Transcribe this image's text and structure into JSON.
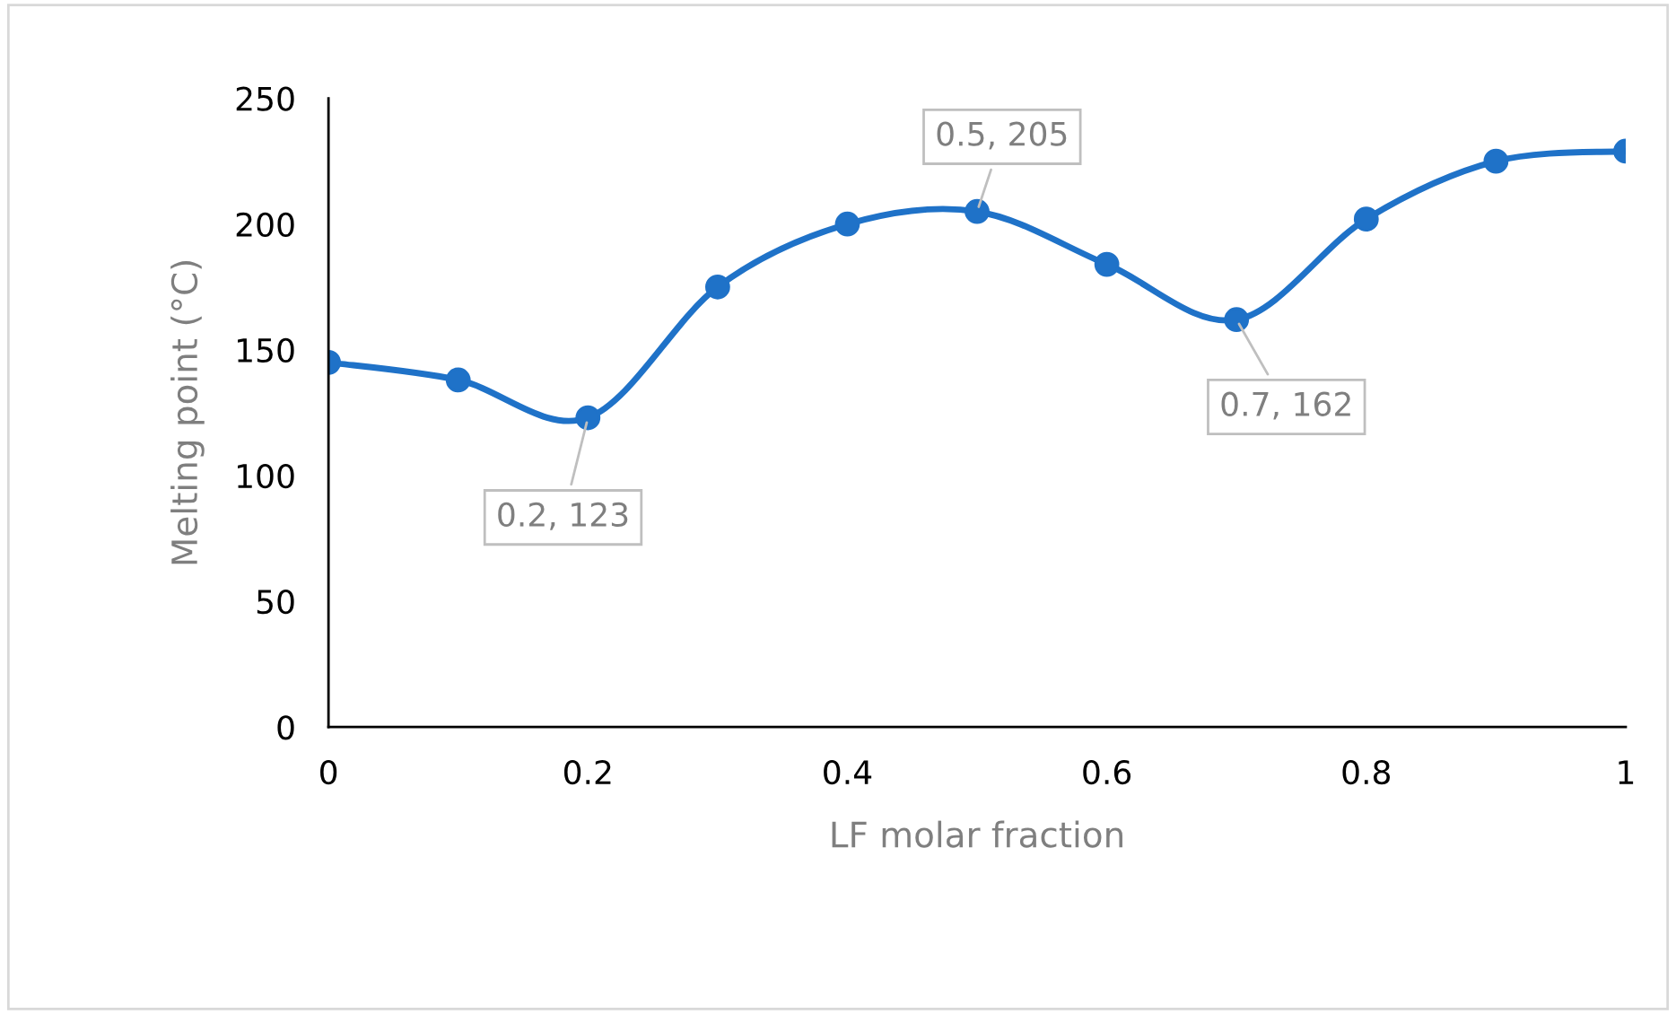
{
  "chart_data": {
    "type": "line",
    "xlabel": "LF molar fraction",
    "ylabel": "Melting point (°C)",
    "x": [
      0,
      0.1,
      0.2,
      0.3,
      0.4,
      0.5,
      0.6,
      0.7,
      0.8,
      0.9,
      1
    ],
    "series": [
      {
        "color": "#1f72c8",
        "values": [
          145,
          138,
          123,
          175,
          200,
          205,
          184,
          162,
          202,
          225,
          229
        ]
      }
    ],
    "xlim": [
      0,
      1
    ],
    "xticks": [
      0,
      0.2,
      0.4,
      0.6,
      0.8,
      1
    ],
    "ylim": [
      0,
      250
    ],
    "yticks": [
      0,
      50,
      100,
      150,
      200,
      250
    ],
    "grid": false,
    "legend": false,
    "marker": "circle",
    "line_style": "solid",
    "annotations": [
      {
        "text": "0.2, 123",
        "x": 0.2,
        "y": 123
      },
      {
        "text": "0.5, 205",
        "x": 0.5,
        "y": 205
      },
      {
        "text": "0.7, 162",
        "x": 0.7,
        "y": 162
      }
    ]
  }
}
